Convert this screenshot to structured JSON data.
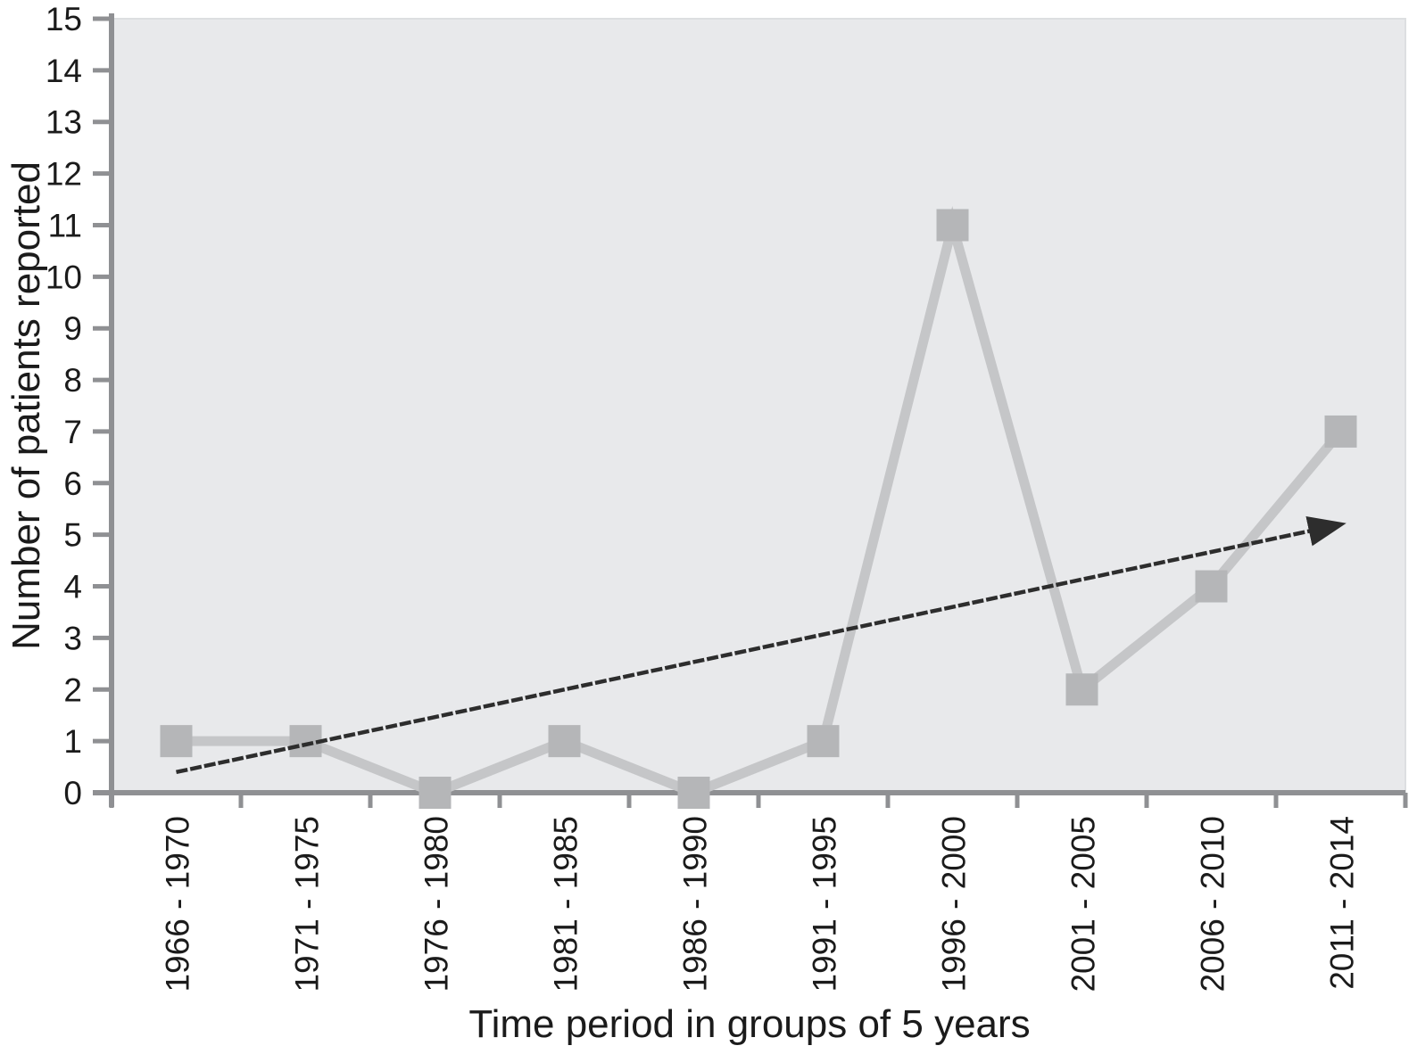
{
  "chart_data": {
    "type": "line",
    "title": "",
    "xlabel": "Time period in groups of 5 years",
    "ylabel": "Number of patients reported",
    "categories": [
      "1966 - 1970",
      "1971 - 1975",
      "1976 - 1980",
      "1981 - 1985",
      "1986 - 1990",
      "1991 - 1995",
      "1996 - 2000",
      "2001 - 2005",
      "2006 - 2010",
      "2011 - 2014"
    ],
    "series": [
      {
        "name": "Number of patients reported",
        "values": [
          1,
          1,
          0,
          1,
          0,
          1,
          11,
          2,
          4,
          7
        ],
        "marker": "square"
      }
    ],
    "trend_arrow": {
      "start_index": 0,
      "start_value": 0.4,
      "end_index": 9,
      "end_value": 5.2,
      "style": "thin dark line with filled arrowhead"
    },
    "ylim": [
      0,
      15
    ],
    "ytick_step": 1,
    "grid": false,
    "legend": null,
    "layout_hints": {
      "x_tick_marks": "at category boundaries",
      "x_tick_label_rotation": -90,
      "background": "plot area shaded light gray"
    },
    "colors": {
      "plot_bg": "#e8e9eb",
      "series_line": "#c5c6c8",
      "marker": "#b5b6b8",
      "trend": "#2d2d2d",
      "axis": "#8f9093",
      "text": "#1b1b1b",
      "page_bg": "#ffffff"
    }
  }
}
